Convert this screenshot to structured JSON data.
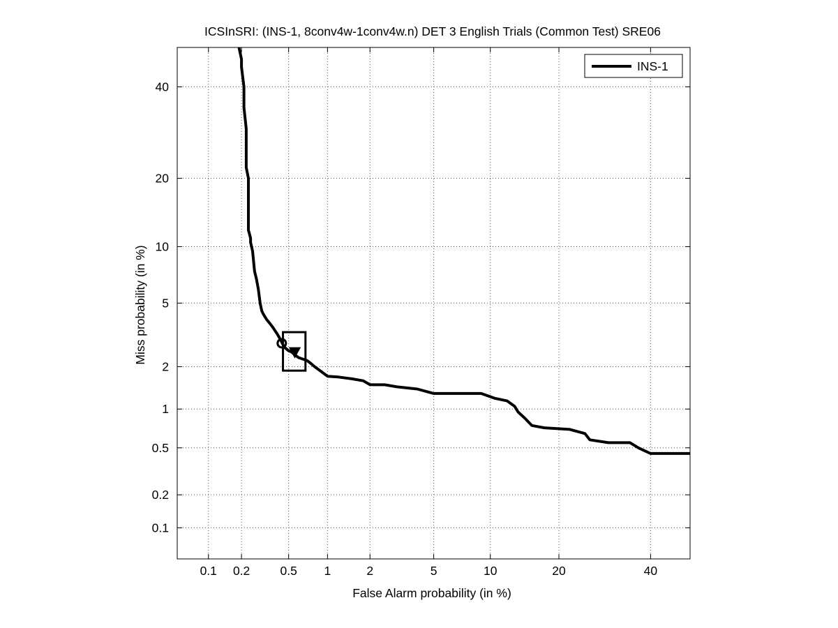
{
  "chart_data": {
    "type": "line",
    "title": "ICSInSRI: (INS-1, 8conv4w-1conv4w.n) DET 3 English Trials (Common Test) SRE06",
    "xlabel": "False Alarm probability (in %)",
    "ylabel": "Miss probability (in %)",
    "x_scale": "probit",
    "y_scale": "probit",
    "xlim": [
      0.05,
      50
    ],
    "ylim": [
      0.05,
      50
    ],
    "x_ticks": [
      0.1,
      0.2,
      0.5,
      1,
      2,
      5,
      10,
      20,
      40
    ],
    "x_tick_labels": [
      "0.1",
      "0.2",
      "0.5",
      "1",
      "2",
      "5",
      "10",
      "20",
      "40"
    ],
    "y_ticks": [
      0.1,
      0.2,
      0.5,
      1,
      2,
      5,
      10,
      20,
      40
    ],
    "y_tick_labels": [
      "0.1",
      "0.2",
      "0.5",
      "1",
      "2",
      "5",
      "10",
      "20",
      "40"
    ],
    "grid": true,
    "legend_position": "top-right",
    "series": [
      {
        "name": "INS-1",
        "color": "#000000",
        "x": [
          0.19,
          0.2,
          0.2,
          0.21,
          0.21,
          0.22,
          0.22,
          0.23,
          0.23,
          0.24,
          0.24,
          0.25,
          0.26,
          0.27,
          0.28,
          0.29,
          0.3,
          0.31,
          0.33,
          0.35,
          0.37,
          0.4,
          0.42,
          0.44,
          0.46,
          0.5,
          0.53,
          0.56,
          0.6,
          0.65,
          0.7,
          0.75,
          0.8,
          0.9,
          1.0,
          1.2,
          1.5,
          1.8,
          2.0,
          2.5,
          3.0,
          4.0,
          5.0,
          7.0,
          9.0,
          10.5,
          12.0,
          13.0,
          13.5,
          14.5,
          15.5,
          17.5,
          22,
          25,
          26,
          30,
          35,
          37,
          40,
          50
        ],
        "y": [
          50,
          47,
          45,
          40,
          35,
          30,
          22,
          20,
          12,
          11,
          10.5,
          9.5,
          7.5,
          6.8,
          6.0,
          5.0,
          4.5,
          4.3,
          4.0,
          3.8,
          3.6,
          3.3,
          3.1,
          2.9,
          2.7,
          2.55,
          2.5,
          2.4,
          2.3,
          2.25,
          2.2,
          2.1,
          2.0,
          1.85,
          1.72,
          1.7,
          1.65,
          1.6,
          1.5,
          1.5,
          1.45,
          1.4,
          1.3,
          1.3,
          1.3,
          1.2,
          1.15,
          1.05,
          0.95,
          0.85,
          0.75,
          0.72,
          0.7,
          0.65,
          0.58,
          0.55,
          0.55,
          0.5,
          0.45,
          0.45
        ]
      }
    ],
    "markers": [
      {
        "shape": "circle",
        "x": 0.44,
        "y": 2.85
      },
      {
        "shape": "triangle-down",
        "x": 0.56,
        "y": 2.5
      }
    ],
    "confidence_box": {
      "x_range": [
        0.45,
        0.68
      ],
      "y_range": [
        1.88,
        3.35
      ]
    }
  }
}
